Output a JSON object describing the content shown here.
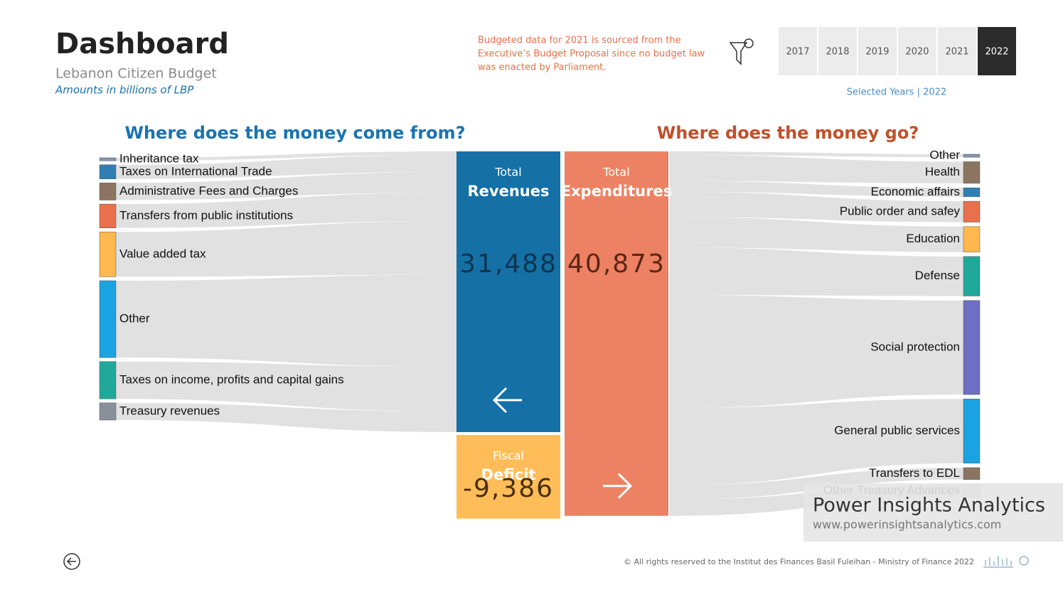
{
  "header": {
    "title": "Dashboard",
    "subtitle": "Lebanon Citizen Budget",
    "units": "Amounts in billions of LBP"
  },
  "note": [
    "Budgeted data for 2021 is sourced from the",
    "Executive’s Budget Proposal since no budget law",
    "was enacted by Parliament."
  ],
  "years": [
    "2017",
    "2018",
    "2019",
    "2020",
    "2021",
    "2022"
  ],
  "selected_year": "2022",
  "selected_label": "Selected Years | 2022",
  "chart_data": {
    "type": "sankey",
    "title_left": "Where does the money come from?",
    "title_right": "Where does the money go?",
    "revenues": {
      "label": "Total",
      "name": "Revenues",
      "value": 31488,
      "value_label": "31,488"
    },
    "expenditures": {
      "label": "Total",
      "name": "Expenditures",
      "value": 40873,
      "value_label": "40,873"
    },
    "deficit": {
      "label": "Fiscal",
      "name": "Deficit",
      "value": -9386,
      "value_label": "-9,386"
    },
    "sources": [
      {
        "name": "Inheritance tax",
        "color": "#8496b0",
        "value": 400
      },
      {
        "name": "Taxes on International Trade",
        "color": "#2f7fb5",
        "value": 1900
      },
      {
        "name": "Administrative Fees and Charges",
        "color": "#8c7560",
        "value": 2300
      },
      {
        "name": "Transfers from public institutions",
        "color": "#e8704a",
        "value": 3200
      },
      {
        "name": "Value added tax",
        "color": "#ffb84d",
        "value": 6000
      },
      {
        "name": "Other",
        "color": "#1aa3e0",
        "value": 10300
      },
      {
        "name": "Taxes on income, profits and capital gains",
        "color": "#20a89a",
        "value": 5000
      },
      {
        "name": "Treasury revenues",
        "color": "#8a8f99",
        "value": 2300
      }
    ],
    "uses": [
      {
        "name": "Other",
        "color": "#8496b0",
        "value": 400
      },
      {
        "name": "Health",
        "color": "#8c7560",
        "value": 2900
      },
      {
        "name": "Economic affairs",
        "color": "#2f7fb5",
        "value": 1200
      },
      {
        "name": "Public order and safey",
        "color": "#e8704a",
        "value": 2800
      },
      {
        "name": "Education",
        "color": "#ffb84d",
        "value": 3400
      },
      {
        "name": "Defense",
        "color": "#20a89a",
        "value": 5300
      },
      {
        "name": "Social protection",
        "color": "#6e6ec4",
        "value": 12600
      },
      {
        "name": "General public services",
        "color": "#1aa3e0",
        "value": 8600
      },
      {
        "name": "Transfers to EDL",
        "color": "#8c7560",
        "value": 1600
      },
      {
        "name": "Other Treasury Advances",
        "color": "#cfd3d8",
        "value": 1800
      }
    ]
  },
  "watermark": {
    "name": "Power Insights Analytics",
    "url": "www.powerinsightsanalytics.com"
  },
  "footer": "© All rights reserved to the Institut des Finances Basil Fuleihan - Ministry of Finance 2022"
}
